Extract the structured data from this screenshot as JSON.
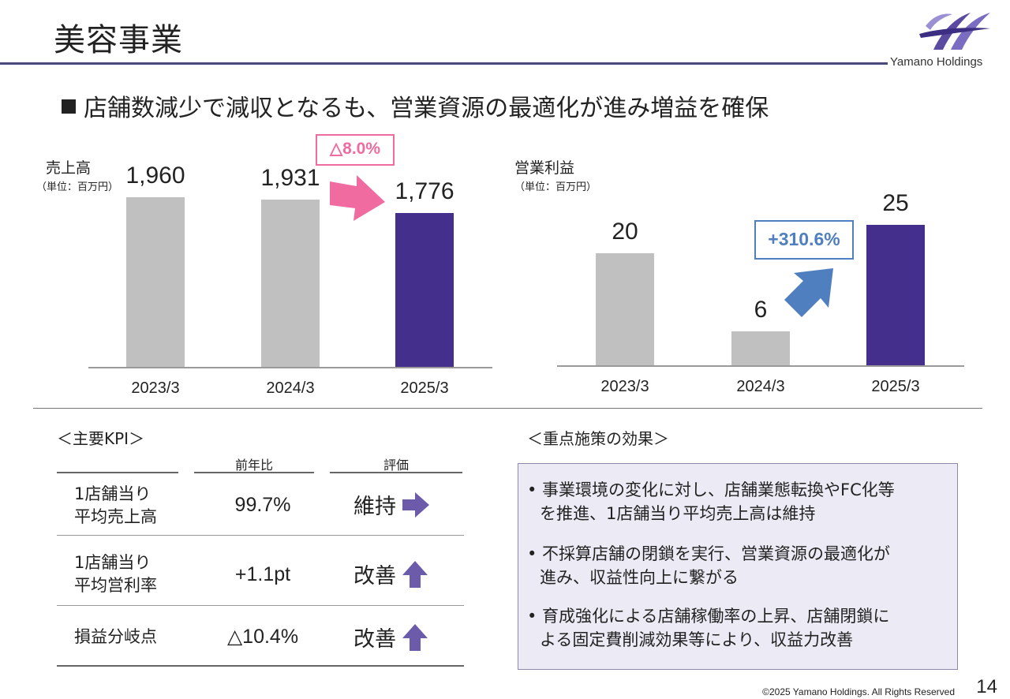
{
  "header": {
    "title": "美容事業",
    "logo_text": "Yamano Holdings",
    "headline": "店舗数減少で減収となるも、営業資源の最適化が進み増益を確保"
  },
  "colors": {
    "gray_bar": "#c0c0c0",
    "accent_bar": "#44308c",
    "pink": "#f06ca0",
    "blue": "#4f7fbf",
    "purple_arrow": "#6c5aaa"
  },
  "chart_data": [
    {
      "type": "bar",
      "title": "売上高",
      "unit": "（単位：百万円）",
      "categories": [
        "2023/3",
        "2024/3",
        "2025/3"
      ],
      "values": [
        1960,
        1931,
        1776
      ],
      "value_labels": [
        "1,960",
        "1,931",
        "1,776"
      ],
      "highlight_index": 2,
      "change_label": "△8.0%",
      "change_icon": "arrow-right-down-icon"
    },
    {
      "type": "bar",
      "title": "営業利益",
      "unit": "（単位：百万円）",
      "categories": [
        "2023/3",
        "2024/3",
        "2025/3"
      ],
      "values": [
        20,
        6,
        25
      ],
      "value_labels": [
        "20",
        "6",
        "25"
      ],
      "highlight_index": 2,
      "change_label": "+310.6%",
      "change_icon": "arrow-up-right-icon"
    }
  ],
  "kpi": {
    "section_title": "＜主要KPI＞",
    "col_yoy": "前年比",
    "col_eval": "評価",
    "rows": [
      {
        "name1": "1店舗当り",
        "name2": "平均売上高",
        "value": "99.7%",
        "eval": "維持",
        "icon": "arrow-right-icon"
      },
      {
        "name1": "1店舗当り",
        "name2": "平均営利率",
        "value": "+1.1pt",
        "eval": "改善",
        "icon": "arrow-up-icon"
      },
      {
        "name1": "損益分岐点",
        "name2": "",
        "value": "△10.4%",
        "eval": "改善",
        "icon": "arrow-up-icon"
      }
    ]
  },
  "effects": {
    "section_title": "＜重点施策の効果＞",
    "items": [
      {
        "line1": "• 事業環境の変化に対し、店舗業態転換やFC化等",
        "line2": "を推進、1店舗当り平均売上高は維持"
      },
      {
        "line1": "• 不採算店舗の閉鎖を実行、営業資源の最適化が",
        "line2": "進み、収益性向上に繋がる"
      },
      {
        "line1": "• 育成強化による店舗稼働率の上昇、店舗閉鎖に",
        "line2": "よる固定費削減効果等により、収益力改善"
      }
    ]
  },
  "footer": {
    "copyright": "©2025 Yamano Holdings. All Rights Reserved",
    "page_number": "14"
  }
}
